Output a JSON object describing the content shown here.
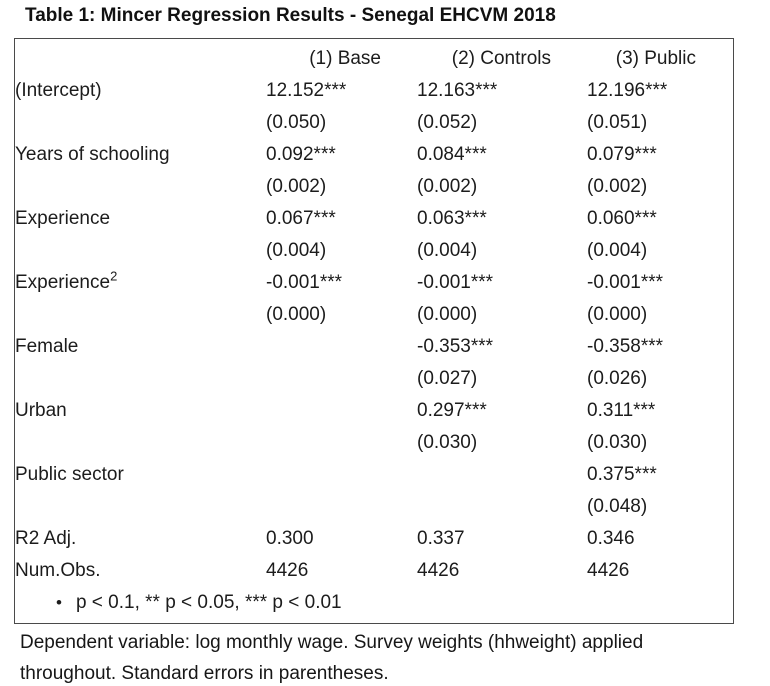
{
  "title": "Table 1: Mincer Regression Results - Senegal EHCVM 2018",
  "table": {
    "columns": [
      "",
      "(1) Base",
      "(2) Controls",
      "(3) Public"
    ],
    "rows": [
      {
        "kind": "coef",
        "label": "(Intercept)",
        "cells": [
          "12.152***",
          "12.163***",
          "12.196***"
        ]
      },
      {
        "kind": "se",
        "label": "",
        "cells": [
          "(0.050)",
          "(0.052)",
          "(0.051)"
        ]
      },
      {
        "kind": "coef",
        "label": "Years of schooling",
        "cells": [
          "0.092***",
          "0.084***",
          "0.079***"
        ]
      },
      {
        "kind": "se",
        "label": "",
        "cells": [
          "(0.002)",
          "(0.002)",
          "(0.002)"
        ]
      },
      {
        "kind": "coef",
        "label": "Experience",
        "cells": [
          "0.067***",
          "0.063***",
          "0.060***"
        ]
      },
      {
        "kind": "se",
        "label": "",
        "cells": [
          "(0.004)",
          "(0.004)",
          "(0.004)"
        ]
      },
      {
        "kind": "coef",
        "label": "Experience",
        "label_sup": "2",
        "cells": [
          "-0.001***",
          "-0.001***",
          "-0.001***"
        ]
      },
      {
        "kind": "se",
        "label": "",
        "cells": [
          "(0.000)",
          "(0.000)",
          "(0.000)"
        ]
      },
      {
        "kind": "coef",
        "label": "Female",
        "cells": [
          "",
          "-0.353***",
          "-0.358***"
        ]
      },
      {
        "kind": "se",
        "label": "",
        "cells": [
          "",
          "(0.027)",
          "(0.026)"
        ]
      },
      {
        "kind": "coef",
        "label": "Urban",
        "cells": [
          "",
          "0.297***",
          "0.311***"
        ]
      },
      {
        "kind": "se",
        "label": "",
        "cells": [
          "",
          "(0.030)",
          "(0.030)"
        ]
      },
      {
        "kind": "coef",
        "label": "Public sector",
        "cells": [
          "",
          "",
          "0.375***"
        ]
      },
      {
        "kind": "se",
        "label": "",
        "cells": [
          "",
          "",
          "(0.048)"
        ]
      },
      {
        "kind": "stat",
        "label": "R2 Adj.",
        "cells": [
          "0.300",
          "0.337",
          "0.346"
        ]
      },
      {
        "kind": "stat",
        "label": "Num.Obs.",
        "cells": [
          "4426",
          "4426",
          "4426"
        ]
      }
    ],
    "note_bullet": "•",
    "note": "p < 0.1, ** p < 0.05, *** p < 0.01"
  },
  "caption": "Dependent variable: log monthly wage. Survey weights (hhweight) applied throughout. Standard errors in parentheses."
}
